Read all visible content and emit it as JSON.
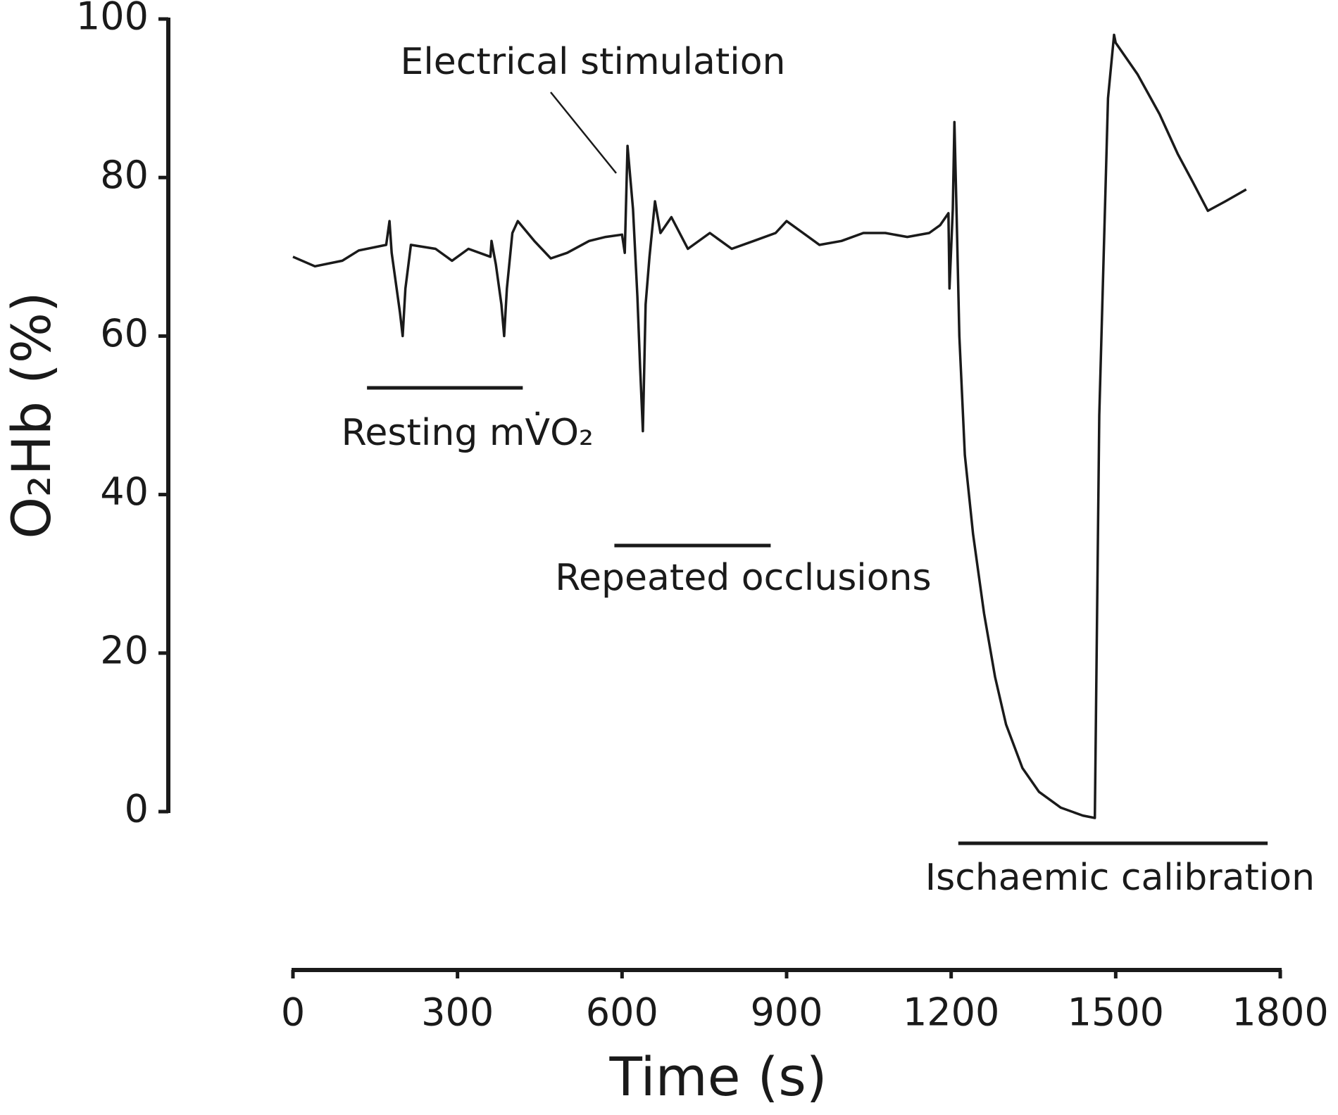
{
  "chart_data": {
    "type": "line",
    "x_label": "Time (s)",
    "y_label": "O₂Hb (%)",
    "xlim": [
      0,
      1800
    ],
    "xticks": [
      0,
      300,
      600,
      900,
      1200,
      1500,
      1800
    ],
    "ylim": [
      0,
      100
    ],
    "yticks": [
      0,
      20,
      40,
      60,
      80,
      100
    ],
    "color": "#1a1a1a",
    "x": [
      0,
      40,
      90,
      120,
      170,
      176,
      180,
      195,
      200,
      205,
      215,
      260,
      290,
      320,
      360,
      362,
      370,
      380,
      385,
      390,
      400,
      410,
      440,
      470,
      500,
      540,
      570,
      600,
      605,
      610,
      620,
      628,
      633,
      638,
      643,
      650,
      660,
      670,
      690,
      720,
      760,
      800,
      840,
      880,
      900,
      930,
      960,
      1000,
      1040,
      1080,
      1120,
      1160,
      1180,
      1195,
      1197,
      1203,
      1206,
      1210,
      1215,
      1225,
      1240,
      1260,
      1280,
      1300,
      1330,
      1360,
      1400,
      1440,
      1462,
      1470,
      1486,
      1497,
      1500,
      1540,
      1580,
      1613,
      1640,
      1668,
      1700,
      1738
    ],
    "values": [
      70,
      68.8,
      69.5,
      70.8,
      71.5,
      74.5,
      70.5,
      63,
      60,
      66,
      71.5,
      71,
      69.5,
      71,
      70,
      72,
      69,
      64,
      60,
      66,
      73,
      74.5,
      72,
      69.8,
      70.5,
      72,
      72.5,
      72.8,
      70.5,
      84,
      76,
      65,
      56,
      48,
      64,
      70,
      77,
      73,
      75,
      71,
      73,
      71,
      72,
      73,
      74.5,
      73,
      71.5,
      72,
      73,
      73,
      72.5,
      73,
      74,
      75.5,
      66,
      76,
      87,
      75,
      60,
      45,
      35,
      25,
      17,
      11,
      5.5,
      2.5,
      0.5,
      -0.5,
      -0.8,
      50,
      90,
      98,
      97,
      93,
      88,
      83,
      79.5,
      75.8,
      77,
      78.5
    ],
    "annotations": [
      {
        "text": "Electrical stimulation"
      },
      {
        "text": "Resting mV̇O₂",
        "x": [
          135,
          419
        ]
      },
      {
        "text": "Repeated occlusions",
        "x": [
          586,
          871
        ]
      },
      {
        "text": "Ischaemic calibration",
        "x": [
          1213,
          1777
        ]
      }
    ]
  }
}
